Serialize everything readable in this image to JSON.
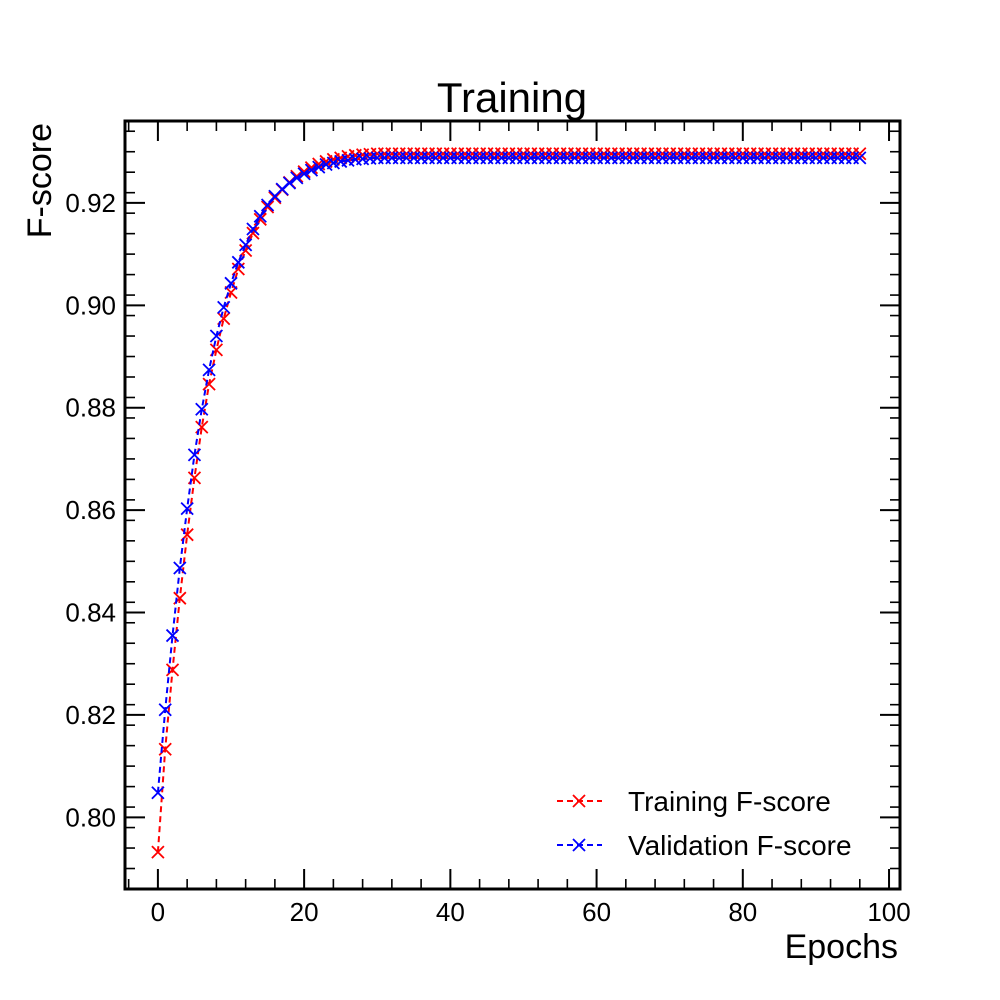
{
  "chart_data": {
    "type": "line",
    "title": "Training",
    "xlabel": "Epochs",
    "ylabel": "F-score",
    "xlim": [
      -4.5,
      101.5
    ],
    "ylim": [
      0.786,
      0.936
    ],
    "x_ticks": [
      0,
      20,
      40,
      60,
      80,
      100
    ],
    "x_tick_labels": [
      "0",
      "20",
      "40",
      "60",
      "80",
      "100"
    ],
    "y_ticks": [
      0.8,
      0.82,
      0.84,
      0.86,
      0.88,
      0.9,
      0.92
    ],
    "y_tick_labels": [
      "0.80",
      "0.82",
      "0.84",
      "0.86",
      "0.88",
      "0.90",
      "0.92"
    ],
    "grid": false,
    "legend_position": "lower-right",
    "n_epochs": 97,
    "series": [
      {
        "name": "Training F-score",
        "color": "#ff0000",
        "line_style": "dashed",
        "marker": "x",
        "start_values": [
          0.7932,
          0.8133,
          0.8288,
          0.8428,
          0.8552,
          0.8663,
          0.8762,
          0.8846,
          0.8913,
          0.8974,
          0.9025,
          0.9071,
          0.9107,
          0.9141,
          0.9168,
          0.9192,
          0.921,
          0.9226,
          0.924,
          0.9252,
          0.9261,
          0.9269,
          0.9276,
          0.9281,
          0.9285,
          0.9288,
          0.9291,
          0.9293,
          0.9294,
          0.9295,
          0.9296,
          0.9296
        ],
        "plateau_value": 0.9296
      },
      {
        "name": "Validation F-score",
        "color": "#0000ff",
        "line_style": "dashed",
        "marker": "x",
        "start_values": [
          0.8048,
          0.821,
          0.8355,
          0.8487,
          0.8603,
          0.8708,
          0.8797,
          0.8874,
          0.894,
          0.8996,
          0.9043,
          0.9084,
          0.9118,
          0.9149,
          0.9174,
          0.9196,
          0.9213,
          0.9227,
          0.9239,
          0.9249,
          0.9257,
          0.9264,
          0.927,
          0.9275,
          0.9278,
          0.9281,
          0.9283,
          0.9285,
          0.9286,
          0.9287,
          0.9288,
          0.9288
        ],
        "plateau_value": 0.9288
      }
    ]
  }
}
